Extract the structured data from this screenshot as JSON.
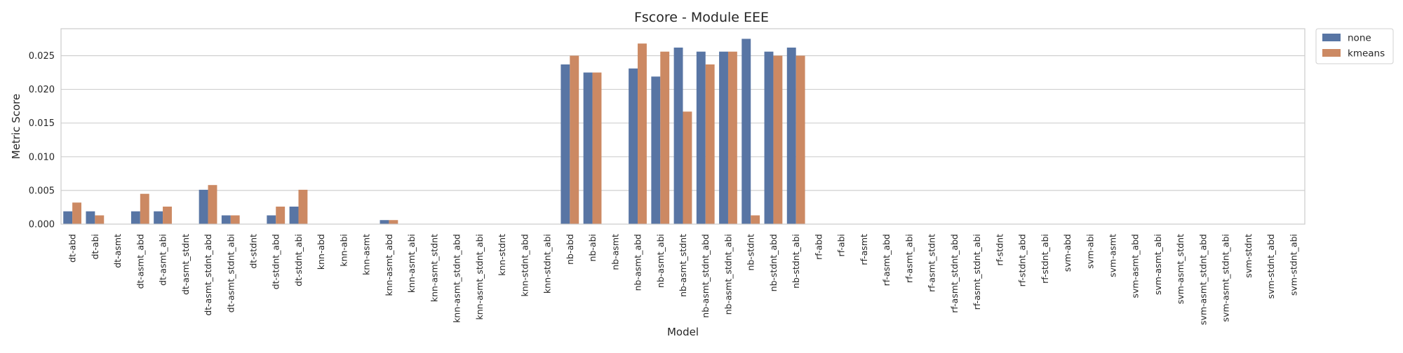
{
  "chart_data": {
    "type": "bar",
    "title": "Fscore - Module EEE",
    "xlabel": "Model",
    "ylabel": "Metric Score",
    "ylim": [
      0,
      0.029
    ],
    "yticks": [
      "0.000",
      "0.005",
      "0.010",
      "0.015",
      "0.020",
      "0.025"
    ],
    "ytick_values": [
      0,
      0.005,
      0.01,
      0.015,
      0.02,
      0.025
    ],
    "grid": true,
    "legend_position": "outside-top-right",
    "categories": [
      "dt-abd",
      "dt-abi",
      "dt-asmt",
      "dt-asmt_abd",
      "dt-asmt_abi",
      "dt-asmt_stdnt",
      "dt-asmt_stdnt_abd",
      "dt-asmt_stdnt_abi",
      "dt-stdnt",
      "dt-stdnt_abd",
      "dt-stdnt_abi",
      "knn-abd",
      "knn-abi",
      "knn-asmt",
      "knn-asmt_abd",
      "knn-asmt_abi",
      "knn-asmt_stdnt",
      "knn-asmt_stdnt_abd",
      "knn-asmt_stdnt_abi",
      "knn-stdnt",
      "knn-stdnt_abd",
      "knn-stdnt_abi",
      "nb-abd",
      "nb-abi",
      "nb-asmt",
      "nb-asmt_abd",
      "nb-asmt_abi",
      "nb-asmt_stdnt",
      "nb-asmt_stdnt_abd",
      "nb-asmt_stdnt_abi",
      "nb-stdnt",
      "nb-stdnt_abd",
      "nb-stdnt_abi",
      "rf-abd",
      "rf-abi",
      "rf-asmt",
      "rf-asmt_abd",
      "rf-asmt_abi",
      "rf-asmt_stdnt",
      "rf-asmt_stdnt_abd",
      "rf-asmt_stdnt_abi",
      "rf-stdnt",
      "rf-stdnt_abd",
      "rf-stdnt_abi",
      "svm-abd",
      "svm-abi",
      "svm-asmt",
      "svm-asmt_abd",
      "svm-asmt_abi",
      "svm-asmt_stdnt",
      "svm-asmt_stdnt_abd",
      "svm-asmt_stdnt_abi",
      "svm-stdnt",
      "svm-stdnt_abd",
      "svm-stdnt_abi"
    ],
    "series": [
      {
        "name": "none",
        "color": "#5875a4",
        "values": [
          0.0019,
          0.0019,
          0,
          0.0019,
          0.0019,
          0,
          0.0051,
          0.0013,
          0,
          0.0013,
          0.0026,
          0,
          0,
          0,
          0.0006,
          0,
          0,
          0,
          0,
          0,
          0,
          0,
          0.0237,
          0.0225,
          0,
          0.0231,
          0.0219,
          0.0262,
          0.0256,
          0.0256,
          0.0275,
          0.0256,
          0.0262,
          0,
          0,
          0,
          0,
          0,
          0,
          0,
          0,
          0,
          0,
          0,
          0,
          0,
          0,
          0,
          0,
          0,
          0,
          0,
          0,
          0,
          0
        ]
      },
      {
        "name": "kmeans",
        "color": "#cc8963",
        "values": [
          0.0032,
          0.0013,
          0,
          0.0045,
          0.0026,
          0,
          0.0058,
          0.0013,
          0,
          0.0026,
          0.0051,
          0,
          0,
          0,
          0.0006,
          0,
          0,
          0,
          0,
          0,
          0,
          0,
          0.025,
          0.0225,
          0,
          0.0268,
          0.0256,
          0.0167,
          0.0237,
          0.0256,
          0.0013,
          0.025,
          0.025,
          0,
          0,
          0,
          0,
          0,
          0,
          0,
          0,
          0,
          0,
          0,
          0,
          0,
          0,
          0,
          0,
          0,
          0,
          0,
          0,
          0,
          0
        ]
      }
    ]
  }
}
